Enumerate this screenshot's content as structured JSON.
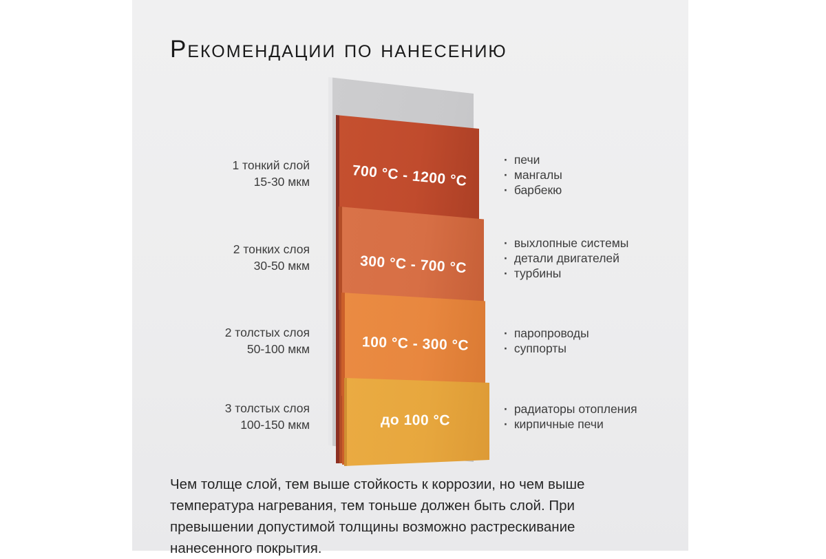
{
  "title": "Рекомендации по нанесению",
  "diagram": {
    "plate": {
      "name": "стальная пластина",
      "color": "#c9c9cb"
    },
    "layers": [
      {
        "temp": "700 °C - 1200 °C",
        "coats": "1 тонкий слой",
        "thickness": "15-30 мкм",
        "color": "#c04b2d",
        "uses": [
          "печи",
          "мангалы",
          "барбекю"
        ]
      },
      {
        "temp": "300 °C - 700 °C",
        "coats": "2 тонких слоя",
        "thickness": "30-50 мкм",
        "color": "#d76f45",
        "uses": [
          "выхлопные системы",
          "детали двигателей",
          "турбины"
        ]
      },
      {
        "temp": "100 °C - 300 °C",
        "coats": "2 толстых слоя",
        "thickness": "50-100 мкм",
        "color": "#e8873f",
        "uses": [
          "паропроводы",
          "суппорты"
        ]
      },
      {
        "temp": "до 100 °C",
        "coats": "3 толстых слоя",
        "thickness": "100-150 мкм",
        "color": "#e7a73e",
        "uses": [
          "радиаторы отопления",
          "кирпичные печи"
        ]
      }
    ]
  },
  "footer": "Чем толще слой, тем выше стойкость к коррозии, но чем выше температура нагревания, тем тоньше должен быть слой. При превышении допустимой толщины возможно растрескивание нанесенного покрытия."
}
